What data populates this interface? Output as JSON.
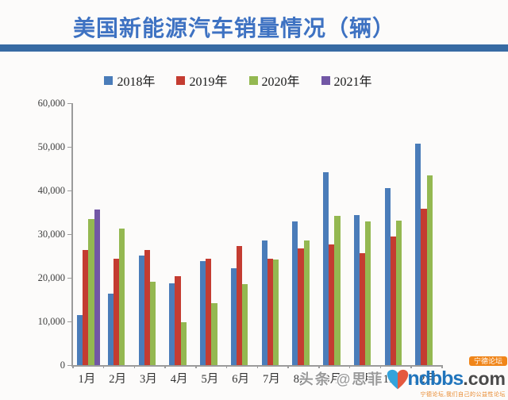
{
  "chart_data": {
    "type": "bar",
    "title": "美国新能源汽车销量情况（辆）",
    "categories": [
      "1月",
      "2月",
      "3月",
      "4月",
      "5月",
      "6月",
      "7月",
      "8月",
      "9月",
      "10月",
      "11月",
      "12月"
    ],
    "series": [
      {
        "name": "2018年",
        "color": "#4A7CB9",
        "values": [
          11500,
          16300,
          25100,
          18700,
          23800,
          22100,
          28600,
          32900,
          44100,
          34400,
          40500,
          50700
        ]
      },
      {
        "name": "2019年",
        "color": "#C43C31",
        "values": [
          26300,
          24300,
          26300,
          20300,
          24400,
          27200,
          24300,
          26700,
          27600,
          25600,
          29500,
          35800
        ]
      },
      {
        "name": "2020年",
        "color": "#94B851",
        "values": [
          33400,
          31300,
          19000,
          9800,
          14100,
          18500,
          24200,
          28600,
          34100,
          32900,
          33000,
          43500
        ]
      },
      {
        "name": "2021年",
        "color": "#7257A5",
        "values": [
          35600,
          null,
          null,
          null,
          null,
          null,
          null,
          null,
          null,
          null,
          null,
          null
        ]
      }
    ],
    "ylim": [
      0,
      60000
    ],
    "ytick_step": 10000,
    "ytick_labels_bottom_up": [
      "0",
      "10,000",
      "20,000",
      "30,000",
      "40,000",
      "50,000",
      "60,000"
    ],
    "xlabel": "",
    "ylabel": "",
    "grid": false,
    "legend_position": "top"
  },
  "colors": {
    "title_blue": "#3E72C2",
    "divider_blue": "#376AA3",
    "axis_gray": "#9B9B9B"
  },
  "watermark": {
    "prefix": "头条 @思菲",
    "logo_name": "ndbbs",
    "logo_suffix": ".com",
    "badge": "宁德论坛",
    "tagline": "宁德论坛,我们自己的公益性论坛",
    "heart_left_color": "#33A3DC",
    "heart_right_color": "#E4593F"
  }
}
